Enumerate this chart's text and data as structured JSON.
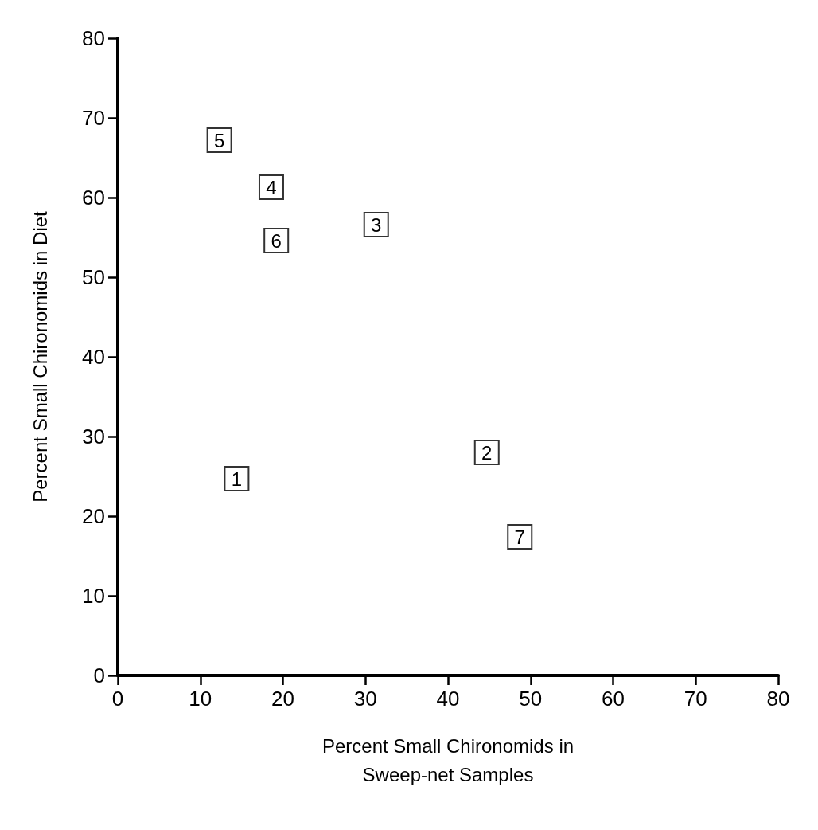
{
  "chart_data": {
    "type": "scatter",
    "xlabel": "Percent Small Chironomids in\nSweep-net Samples",
    "ylabel": "Percent Small Chironomids in Diet",
    "x": [
      14.4,
      44.7,
      31.3,
      18.6,
      12.3,
      19.2,
      48.7
    ],
    "values": [
      24.7,
      28.0,
      56.6,
      61.3,
      67.2,
      54.6,
      17.4
    ],
    "annotations": [
      {
        "text": "1",
        "x": 14.4,
        "y": 24.7
      },
      {
        "text": "2",
        "x": 44.7,
        "y": 28.0
      },
      {
        "text": "3",
        "x": 31.3,
        "y": 56.6
      },
      {
        "text": "4",
        "x": 18.6,
        "y": 61.3
      },
      {
        "text": "5",
        "x": 12.3,
        "y": 67.2
      },
      {
        "text": "6",
        "x": 19.2,
        "y": 54.6
      },
      {
        "text": "7",
        "x": 48.7,
        "y": 17.4
      }
    ],
    "color": "#000000",
    "marker": "square",
    "grid": false,
    "xlim": [
      0,
      80
    ],
    "xticks": [
      0,
      10,
      20,
      30,
      40,
      50,
      60,
      70,
      80
    ],
    "ylim": [
      0,
      80
    ],
    "yticks": [
      0,
      10,
      20,
      30,
      40,
      50,
      60,
      70,
      80
    ]
  }
}
